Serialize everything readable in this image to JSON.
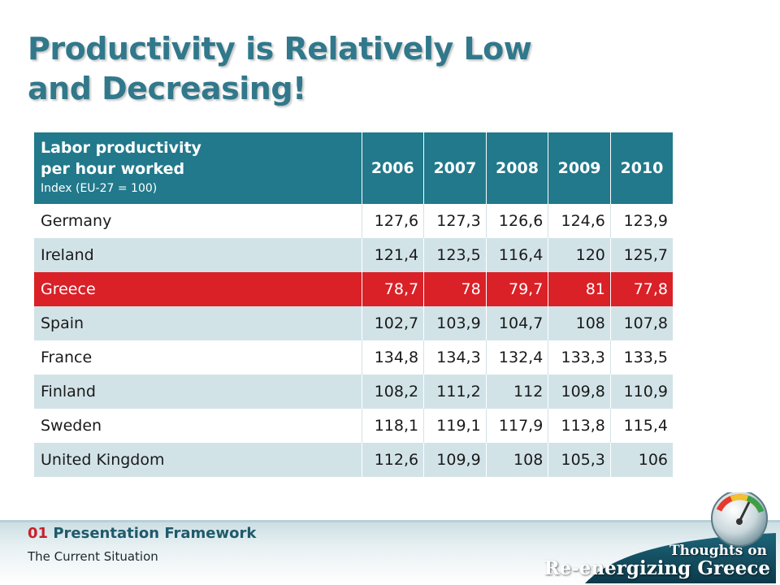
{
  "slide": {
    "title_line1": "Productivity is Relatively Low",
    "title_line2": "and Decreasing!"
  },
  "chart_data": {
    "type": "table",
    "header": {
      "label_line1": "Labor productivity",
      "label_line2": "per hour worked",
      "sub_label": "Index (EU-27 = 100)"
    },
    "years": [
      "2006",
      "2007",
      "2008",
      "2009",
      "2010"
    ],
    "rows": [
      {
        "country": "Germany",
        "values": [
          "127,6",
          "127,3",
          "126,6",
          "124,6",
          "123,9"
        ]
      },
      {
        "country": "Ireland",
        "values": [
          "121,4",
          "123,5",
          "116,4",
          "120",
          "125,7"
        ]
      },
      {
        "country": "Greece",
        "values": [
          "78,7",
          "78",
          "79,7",
          "81",
          "77,8"
        ],
        "highlight": true
      },
      {
        "country": "Spain",
        "values": [
          "102,7",
          "103,9",
          "104,7",
          "108",
          "107,8"
        ]
      },
      {
        "country": "France",
        "values": [
          "134,8",
          "134,3",
          "132,4",
          "133,3",
          "133,5"
        ]
      },
      {
        "country": "Finland",
        "values": [
          "108,2",
          "111,2",
          "112",
          "109,8",
          "110,9"
        ]
      },
      {
        "country": "Sweden",
        "values": [
          "118,1",
          "119,1",
          "117,9",
          "113,8",
          "115,4"
        ]
      },
      {
        "country": "United Kingdom",
        "values": [
          "112,6",
          "109,9",
          "108",
          "105,3",
          "106"
        ]
      }
    ],
    "colors": {
      "header": "#21798b",
      "stripe": "#d2e3e8",
      "highlight": "#d92127",
      "title": "#31788b"
    }
  },
  "footer": {
    "section_number": "01",
    "section_title": "Presentation Framework",
    "subtitle": "The Current Situation"
  },
  "logo": {
    "icon": "gauge-globe-icon",
    "line1": "Thoughts on",
    "line2": "Re-energizing Greece"
  }
}
